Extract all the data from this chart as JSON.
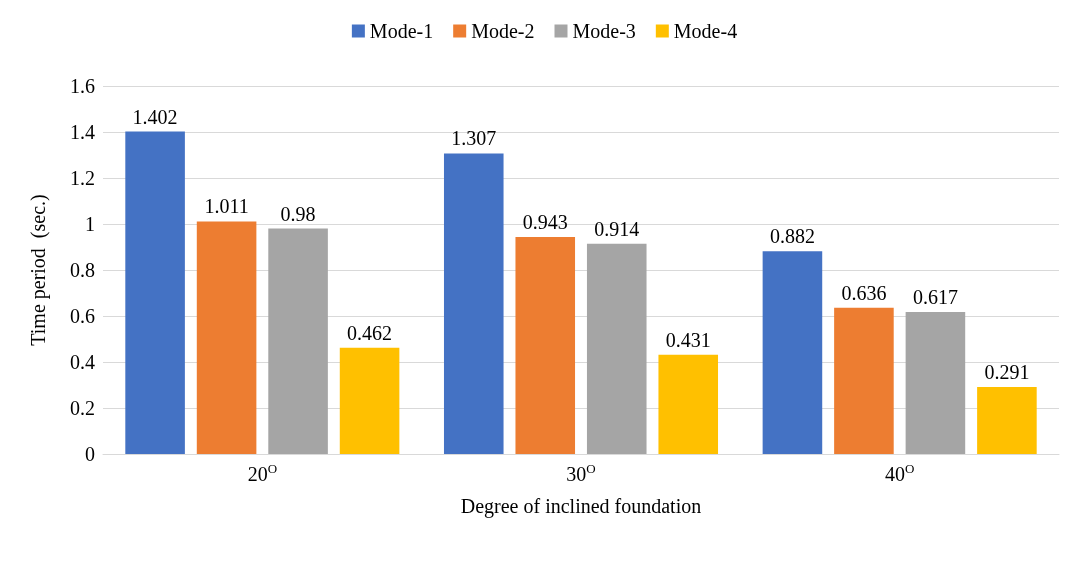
{
  "chart_data": {
    "type": "bar",
    "xlabel": "Degree of inclined foundation",
    "ylabel": "Time period  (sec.)",
    "categories": [
      "20$^{O}$",
      "30$^{O}$",
      "40$^{O}$"
    ],
    "series": [
      {
        "name": "Mode-1",
        "color": "#4472c4",
        "values": [
          1.402,
          1.307,
          0.882
        ]
      },
      {
        "name": "Mode-2",
        "color": "#ed7d31",
        "values": [
          1.011,
          0.943,
          0.636
        ]
      },
      {
        "name": "Mode-3",
        "color": "#a5a5a5",
        "values": [
          0.98,
          0.914,
          0.617
        ]
      },
      {
        "name": "Mode-4",
        "color": "#ffc000",
        "values": [
          0.462,
          0.431,
          0.291
        ]
      }
    ],
    "ylim": [
      0,
      1.6
    ],
    "yticks": [
      0,
      0.2,
      0.4,
      0.6,
      0.8,
      1,
      1.2,
      1.4,
      1.6
    ],
    "grid": "y",
    "legend": "top",
    "data_labels": true
  }
}
